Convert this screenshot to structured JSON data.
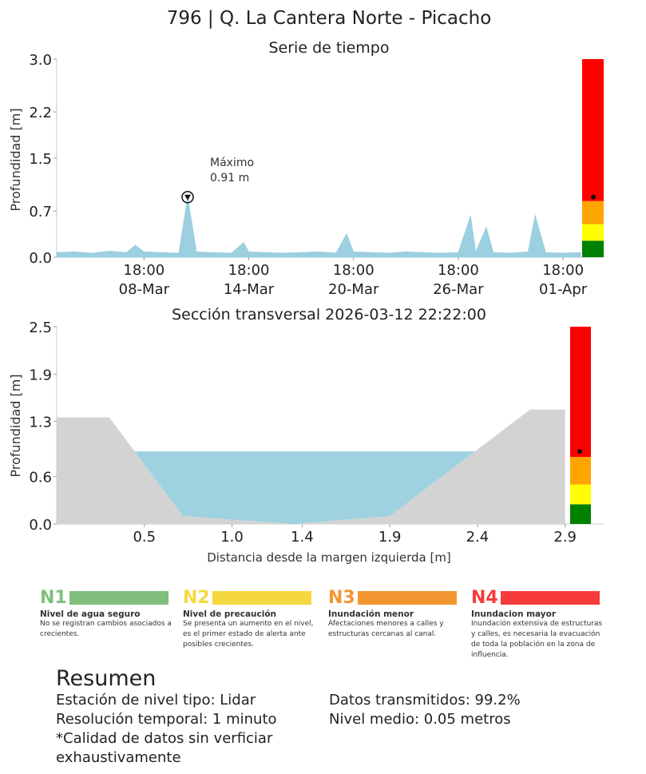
{
  "page_title": "796 | Q. La Cantera Norte - Picacho",
  "chart_data": [
    {
      "type": "area",
      "title": "Serie de tiempo",
      "ylabel": "Profundidad [m]",
      "ylim": [
        0,
        3.0
      ],
      "yticks": [
        "0.0",
        "0.7",
        "1.5",
        "2.2",
        "3.0"
      ],
      "xtick_labels": [
        {
          "time": "18:00",
          "date": "08-Mar"
        },
        {
          "time": "18:00",
          "date": "14-Mar"
        },
        {
          "time": "18:00",
          "date": "20-Mar"
        },
        {
          "time": "18:00",
          "date": "26-Mar"
        },
        {
          "time": "18:00",
          "date": "01-Apr"
        }
      ],
      "x_days": [
        0,
        1,
        2,
        3,
        4,
        4.5,
        5,
        6,
        7,
        7.5,
        8,
        9,
        10,
        10.7,
        11,
        12,
        13,
        14,
        15,
        16,
        16.6,
        17,
        18,
        19,
        20,
        21,
        22,
        23,
        23.7,
        24,
        24.6,
        25,
        26,
        27,
        27.4,
        28,
        29,
        30
      ],
      "values": [
        0.07,
        0.08,
        0.06,
        0.09,
        0.07,
        0.18,
        0.08,
        0.07,
        0.06,
        0.91,
        0.08,
        0.07,
        0.06,
        0.22,
        0.08,
        0.07,
        0.06,
        0.07,
        0.08,
        0.06,
        0.35,
        0.08,
        0.07,
        0.06,
        0.08,
        0.07,
        0.06,
        0.07,
        0.62,
        0.07,
        0.45,
        0.07,
        0.06,
        0.08,
        0.63,
        0.07,
        0.06,
        0.07
      ],
      "annotation": {
        "line1": "Máximo",
        "line2": "0.91 m",
        "x_day": 7.5,
        "value": 0.91
      },
      "series_color": "#9ccfdf",
      "level_bar": {
        "current_value": 0.91
      }
    },
    {
      "type": "area",
      "title": "Sección transversal 2026-03-12 22:22:00",
      "xlabel": "Distancia desde la margen izquierda [m]",
      "ylabel": "Profundidad [m]",
      "ylim": [
        0,
        2.5
      ],
      "xlim": [
        0,
        3.12
      ],
      "yticks": [
        "0.0",
        "0.6",
        "1.3",
        "1.9",
        "2.5"
      ],
      "xticks": [
        "0.5",
        "1.0",
        "1.4",
        "1.9",
        "2.4",
        "2.9"
      ],
      "xtick_values": [
        0.5,
        1.0,
        1.4,
        1.9,
        2.4,
        2.9
      ],
      "terrain": {
        "x": [
          0,
          0.3,
          0.72,
          1.35,
          1.9,
          2.7,
          2.9
        ],
        "y": [
          1.35,
          1.35,
          0.1,
          0.0,
          0.1,
          1.45,
          1.45
        ]
      },
      "water_level": 0.92,
      "water_color": "#9ed2e0",
      "terrain_color": "#d3d3d3",
      "level_bar": {
        "current_value": 0.92
      }
    }
  ],
  "level_scale": [
    {
      "code": "N1",
      "color": "#008000",
      "limit": 0.25
    },
    {
      "code": "N2",
      "color": "#ffff00",
      "limit": 0.5
    },
    {
      "code": "N3",
      "color": "#ffa500",
      "limit": 0.85
    },
    {
      "code": "N4",
      "color": "#ff0000",
      "limit": 2.5
    }
  ],
  "legend": [
    {
      "code": "N1",
      "title": "Nivel de agua seguro",
      "desc": "No se registran cambios asociados a crecientes.",
      "color": "#7fbf7b"
    },
    {
      "code": "N2",
      "title": "Nivel de precaución",
      "desc": "Se presenta un aumento en el nivel, es el primer estado de alerta ante posibles crecientes.",
      "color": "#f5d83e"
    },
    {
      "code": "N3",
      "title": "Inundación menor",
      "desc": "Afectaciones menores a calles y estructuras cercanas al canal.",
      "color": "#f39530"
    },
    {
      "code": "N4",
      "title": "Inundacion mayor",
      "desc": "Inundación extensiva de estructuras y calles, es necesaria la evacuación de toda la población en la zona de influencia.",
      "color": "#f73a3a"
    }
  ],
  "summary": {
    "title": "Resumen",
    "left": [
      "Estación de nivel tipo: Lidar",
      "Resolución temporal: 1 minuto",
      "*Calidad de datos sin verficiar exhaustivamente"
    ],
    "right": [
      "Datos transmitidos: 99.2%",
      "Nivel medio: 0.05 metros"
    ]
  }
}
